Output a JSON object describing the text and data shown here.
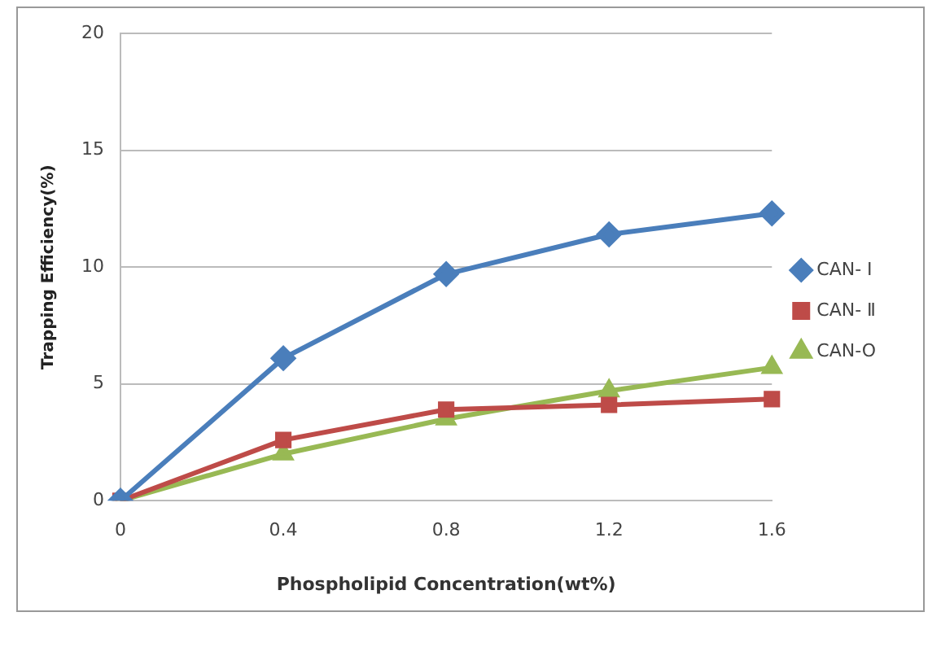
{
  "chart_data": {
    "type": "line",
    "xlabel": "Phospholipid Concentration(wt%)",
    "ylabel": "Trapping Efficiency(%)",
    "categories": [
      "0",
      "0.4",
      "0.8",
      "1.2",
      "1.6"
    ],
    "series": [
      {
        "name": "CAN- Ⅰ",
        "color": "#4a7ebb",
        "marker": "diamond",
        "values": [
          0,
          6.1,
          9.7,
          11.4,
          12.3
        ]
      },
      {
        "name": "CAN- Ⅱ",
        "color": "#be4b48",
        "marker": "square",
        "values": [
          0,
          2.6,
          3.9,
          4.1,
          4.35
        ]
      },
      {
        "name": "CAN-O",
        "color": "#98b954",
        "marker": "triangle",
        "values": [
          0,
          2.0,
          3.5,
          4.7,
          5.7
        ]
      }
    ],
    "ylim": [
      0,
      20
    ],
    "yticks": [
      0,
      5,
      10,
      15,
      20
    ],
    "grid": "y",
    "legend": "right",
    "line_style": "solid"
  }
}
